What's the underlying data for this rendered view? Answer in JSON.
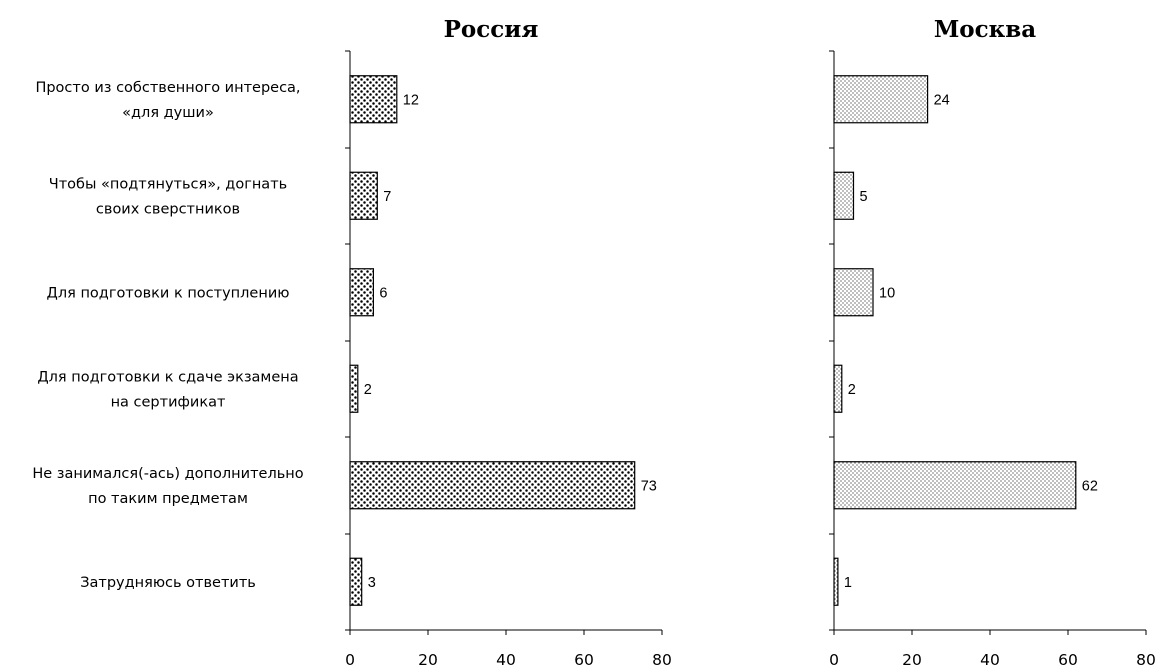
{
  "chart_data": [
    {
      "type": "bar",
      "orientation": "horizontal",
      "title": "Россия",
      "categories": [
        [
          "Просто из собственного интереса,",
          "«для души»"
        ],
        [
          "Чтобы «подтянуться», догнать",
          "своих сверстников"
        ],
        [
          "Для подготовки к поступлению"
        ],
        [
          "Для подготовки к сдаче экзамена",
          "на сертификат"
        ],
        [
          "Не занимался(-ась) дополнительно",
          "по таким предметам"
        ],
        [
          "Затрудняюсь ответить"
        ]
      ],
      "values": [
        12,
        7,
        6,
        2,
        73,
        3
      ],
      "xlim": [
        0,
        80
      ],
      "xticks": [
        0,
        20,
        40,
        60,
        80
      ],
      "pattern": "dense-dots",
      "grid": false
    },
    {
      "type": "bar",
      "orientation": "horizontal",
      "title": "Москва",
      "values": [
        24,
        5,
        10,
        2,
        62,
        1
      ],
      "xlim": [
        0,
        80
      ],
      "xticks": [
        0,
        20,
        40,
        60,
        80
      ],
      "pattern": "sparse-dots",
      "grid": false
    }
  ]
}
